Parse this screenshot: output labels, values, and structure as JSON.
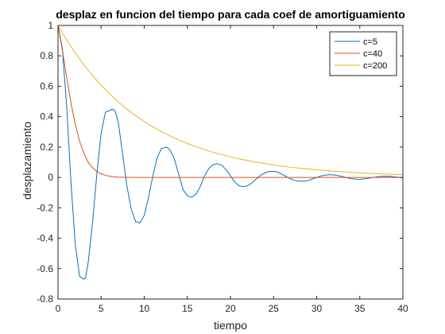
{
  "chart_data": {
    "type": "line",
    "title": "desplaz en funcion del tiempo para cada coef de amortiguamiento",
    "xlabel": "tiempo",
    "ylabel": "desplazamiento",
    "xlim": [
      0,
      40
    ],
    "ylim": [
      -0.8,
      1
    ],
    "xticks": [
      0,
      5,
      10,
      15,
      20,
      25,
      30,
      35,
      40
    ],
    "yticks": [
      -0.8,
      -0.6,
      -0.4,
      -0.2,
      0,
      0.2,
      0.4,
      0.6,
      0.8,
      1
    ],
    "xtick_labels": [
      "0",
      "5",
      "10",
      "15",
      "20",
      "25",
      "30",
      "35",
      "40"
    ],
    "ytick_labels": [
      "-0.8",
      "-0.6",
      "-0.4",
      "-0.2",
      "0",
      "0.2",
      "0.4",
      "0.6",
      "0.8",
      "1"
    ],
    "grid": false,
    "legend_position": "top-right",
    "series": [
      {
        "name": "c=5",
        "color": "#0072BD",
        "x": [
          0,
          0.5,
          1,
          1.5,
          2,
          2.5,
          3,
          3.2,
          3.5,
          4,
          4.5,
          5,
          5.5,
          6,
          6.3,
          6.6,
          7,
          7.5,
          8,
          8.5,
          9,
          9.5,
          10,
          10.5,
          11,
          11.5,
          12,
          12.6,
          13,
          13.5,
          14,
          14.5,
          15,
          15.5,
          16,
          16.5,
          17,
          17.5,
          18,
          18.5,
          19,
          19.5,
          20,
          20.5,
          21,
          21.5,
          22,
          22.5,
          23,
          23.5,
          24,
          24.5,
          25,
          25.5,
          26,
          26.5,
          27,
          27.5,
          28,
          28.5,
          29,
          29.5,
          30,
          30.5,
          31,
          31.5,
          32,
          32.5,
          33,
          33.5,
          34,
          34.5,
          35,
          35.5,
          36,
          36.5,
          37,
          37.5,
          38,
          38.5,
          39,
          39.5,
          40
        ],
        "values": [
          1,
          0.85,
          0.47,
          -0.03,
          -0.44,
          -0.65,
          -0.67,
          -0.66,
          -0.56,
          -0.3,
          0.02,
          0.29,
          0.43,
          0.44,
          0.45,
          0.44,
          0.36,
          0.15,
          -0.06,
          -0.21,
          -0.29,
          -0.3,
          -0.25,
          -0.13,
          0.01,
          0.13,
          0.19,
          0.2,
          0.18,
          0.12,
          0.02,
          -0.08,
          -0.12,
          -0.13,
          -0.11,
          -0.06,
          0.01,
          0.06,
          0.085,
          0.09,
          0.08,
          0.05,
          0.01,
          -0.03,
          -0.055,
          -0.06,
          -0.055,
          -0.035,
          -0.01,
          0.015,
          0.03,
          0.04,
          0.04,
          0.035,
          0.02,
          0.005,
          -0.01,
          -0.02,
          -0.025,
          -0.025,
          -0.02,
          -0.01,
          0,
          0.01,
          0.015,
          0.018,
          0.016,
          0.012,
          0.005,
          -0.002,
          -0.008,
          -0.011,
          -0.012,
          -0.01,
          -0.005,
          0,
          0.004,
          0.007,
          0.008,
          0.007,
          0.004,
          0.001,
          -0.002
        ]
      },
      {
        "name": "c=40",
        "color": "#D95319",
        "x": [
          0,
          0.5,
          1,
          1.5,
          2,
          2.5,
          3,
          3.5,
          4,
          4.5,
          5,
          5.5,
          6,
          6.5,
          7,
          8,
          9,
          10,
          12,
          15,
          20,
          25,
          30,
          35,
          40
        ],
        "values": [
          1,
          0.84,
          0.66,
          0.49,
          0.35,
          0.24,
          0.16,
          0.1,
          0.065,
          0.04,
          0.024,
          0.014,
          0.008,
          0.004,
          0.002,
          0.0005,
          0,
          0,
          0,
          0,
          0,
          0,
          0,
          0,
          0
        ]
      },
      {
        "name": "c=200",
        "color": "#EDB120",
        "x": [
          0,
          1,
          2,
          3,
          4,
          5,
          6,
          7,
          8,
          9,
          10,
          11,
          12,
          13,
          14,
          15,
          16,
          17,
          18,
          19,
          20,
          21,
          22,
          23,
          24,
          25,
          26,
          27,
          28,
          29,
          30,
          31,
          32,
          33,
          34,
          35,
          36,
          37,
          38,
          39,
          40
        ],
        "values": [
          1,
          0.905,
          0.819,
          0.741,
          0.67,
          0.607,
          0.549,
          0.497,
          0.449,
          0.407,
          0.368,
          0.333,
          0.301,
          0.273,
          0.247,
          0.223,
          0.202,
          0.183,
          0.165,
          0.15,
          0.135,
          0.122,
          0.111,
          0.1,
          0.091,
          0.082,
          0.074,
          0.067,
          0.061,
          0.055,
          0.05,
          0.045,
          0.041,
          0.037,
          0.033,
          0.03,
          0.027,
          0.025,
          0.022,
          0.02,
          0.018
        ]
      }
    ]
  }
}
